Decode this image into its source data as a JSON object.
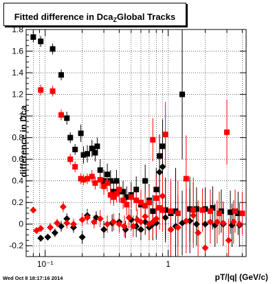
{
  "title": {
    "prefix": "Fitted difference in Dca",
    "subscript": "Z",
    "suffix": "Global Tracks"
  },
  "timestamp": "Wed Oct  8 18:17:16 2014",
  "chart_data": {
    "type": "scatter",
    "xlabel": "pT/|q| (GeV/c)",
    "ylabel": "difference in Dca",
    "xscale": "log",
    "xlim": [
      0.07,
      4.3
    ],
    "ylim": [
      -0.3,
      1.8
    ],
    "xticks": [
      {
        "value": 0.1,
        "label": "10⁻¹"
      },
      {
        "value": 1,
        "label": "1"
      }
    ],
    "yticks": [
      -0.2,
      0,
      0.2,
      0.4,
      0.6,
      0.8,
      1,
      1.2,
      1.4,
      1.6,
      1.8
    ],
    "ytick_labels": [
      "-0.2",
      "0",
      "0.2",
      "0.4",
      "0.6",
      "0.8",
      "1",
      "1.2",
      "1.4",
      "1.6",
      "1.8"
    ],
    "grid": true,
    "series": [
      {
        "marker": "square",
        "color": "#000000",
        "points": [
          {
            "x": 0.08,
            "y": 1.73,
            "err": 0.05
          },
          {
            "x": 0.092,
            "y": 1.69,
            "err": 0.05
          },
          {
            "x": 0.115,
            "y": 1.62,
            "err": 0.05
          },
          {
            "x": 0.135,
            "y": 1.38,
            "err": 0.05
          },
          {
            "x": 0.15,
            "y": 0.98,
            "err": 0.06
          },
          {
            "x": 0.16,
            "y": 0.8,
            "err": 0.05
          },
          {
            "x": 0.175,
            "y": 0.69,
            "err": 0.05
          },
          {
            "x": 0.195,
            "y": 0.84,
            "err": 0.08
          },
          {
            "x": 0.205,
            "y": 0.64,
            "err": 0.08
          },
          {
            "x": 0.22,
            "y": 0.65,
            "err": 0.08
          },
          {
            "x": 0.24,
            "y": 0.7,
            "err": 0.08
          },
          {
            "x": 0.255,
            "y": 0.66,
            "err": 0.08
          },
          {
            "x": 0.265,
            "y": 0.72,
            "err": 0.08
          },
          {
            "x": 0.28,
            "y": 0.5,
            "err": 0.1
          },
          {
            "x": 0.3,
            "y": 0.4,
            "err": 0.1
          },
          {
            "x": 0.32,
            "y": 0.46,
            "err": 0.1
          },
          {
            "x": 0.34,
            "y": 0.4,
            "err": 0.1
          },
          {
            "x": 0.36,
            "y": 0.3,
            "err": 0.1
          },
          {
            "x": 0.38,
            "y": 0.4,
            "err": 0.1
          },
          {
            "x": 0.4,
            "y": 0.3,
            "err": 0.1
          },
          {
            "x": 0.43,
            "y": 0.3,
            "err": 0.1
          },
          {
            "x": 0.46,
            "y": 0.25,
            "err": 0.1
          },
          {
            "x": 0.5,
            "y": 0.27,
            "err": 0.12
          },
          {
            "x": 0.55,
            "y": 0.32,
            "err": 0.12
          },
          {
            "x": 0.6,
            "y": 0.18,
            "err": 0.12
          },
          {
            "x": 0.65,
            "y": 0.4,
            "err": 0.15
          },
          {
            "x": 0.7,
            "y": 0.22,
            "err": 0.15
          },
          {
            "x": 0.75,
            "y": 0.12,
            "err": 0.15
          },
          {
            "x": 0.8,
            "y": 0.32,
            "err": 0.2
          },
          {
            "x": 0.85,
            "y": 0.63,
            "err": 0.2
          },
          {
            "x": 0.9,
            "y": 0.72,
            "err": 0.25
          },
          {
            "x": 0.95,
            "y": 0.13,
            "err": 0.3
          },
          {
            "x": 1.05,
            "y": 0.1,
            "err": 0.3
          },
          {
            "x": 1.15,
            "y": 0.12,
            "err": 0.4
          },
          {
            "x": 1.3,
            "y": 1.2,
            "err": 0.6
          },
          {
            "x": 1.5,
            "y": 0.14,
            "err": 0.3
          },
          {
            "x": 1.7,
            "y": 0.14,
            "err": 0.2
          },
          {
            "x": 2.0,
            "y": 0.14,
            "err": 0.2
          },
          {
            "x": 2.3,
            "y": 0.15,
            "err": 0.2
          },
          {
            "x": 2.7,
            "y": 0.12,
            "err": 0.2
          },
          {
            "x": 3.2,
            "y": 0.11,
            "err": 0.2
          },
          {
            "x": 3.7,
            "y": 0.1,
            "err": 0.2
          }
        ]
      },
      {
        "marker": "square",
        "color": "#ff0000",
        "points": [
          {
            "x": 0.092,
            "y": 1.24,
            "err": 0.05
          },
          {
            "x": 0.115,
            "y": 1.23,
            "err": 0.05
          },
          {
            "x": 0.135,
            "y": 1.01,
            "err": 0.05
          },
          {
            "x": 0.16,
            "y": 0.6,
            "err": 0.05
          },
          {
            "x": 0.175,
            "y": 0.53,
            "err": 0.05
          },
          {
            "x": 0.195,
            "y": 0.42,
            "err": 0.05
          },
          {
            "x": 0.205,
            "y": 0.41,
            "err": 0.05
          },
          {
            "x": 0.22,
            "y": 0.42,
            "err": 0.05
          },
          {
            "x": 0.24,
            "y": 0.44,
            "err": 0.06
          },
          {
            "x": 0.255,
            "y": 0.38,
            "err": 0.06
          },
          {
            "x": 0.28,
            "y": 0.41,
            "err": 0.08
          },
          {
            "x": 0.3,
            "y": 0.35,
            "err": 0.08
          },
          {
            "x": 0.32,
            "y": 0.38,
            "err": 0.08
          },
          {
            "x": 0.34,
            "y": 0.27,
            "err": 0.08
          },
          {
            "x": 0.36,
            "y": 0.25,
            "err": 0.08
          },
          {
            "x": 0.38,
            "y": 0.28,
            "err": 0.08
          },
          {
            "x": 0.4,
            "y": 0.32,
            "err": 0.08
          },
          {
            "x": 0.43,
            "y": 0.22,
            "err": 0.08
          },
          {
            "x": 0.46,
            "y": 0.18,
            "err": 0.1
          },
          {
            "x": 0.5,
            "y": 0.25,
            "err": 0.1
          },
          {
            "x": 0.55,
            "y": 0.22,
            "err": 0.1
          },
          {
            "x": 0.6,
            "y": 0.2,
            "err": 0.12
          },
          {
            "x": 0.65,
            "y": 0.17,
            "err": 0.12
          },
          {
            "x": 0.7,
            "y": 0.2,
            "err": 0.15
          },
          {
            "x": 0.75,
            "y": 0.78,
            "err": 0.2
          },
          {
            "x": 0.8,
            "y": 0.24,
            "err": 0.2
          },
          {
            "x": 0.85,
            "y": 0.15,
            "err": 0.2
          },
          {
            "x": 0.9,
            "y": 0.13,
            "err": 0.2
          },
          {
            "x": 0.95,
            "y": 0.83,
            "err": 0.3
          },
          {
            "x": 1.05,
            "y": 0.12,
            "err": 0.3
          },
          {
            "x": 1.2,
            "y": 0.1,
            "err": 0.3
          },
          {
            "x": 1.4,
            "y": 0.42,
            "err": 0.4
          },
          {
            "x": 1.6,
            "y": 0.13,
            "err": 0.3
          },
          {
            "x": 1.9,
            "y": 0.13,
            "err": 0.2
          },
          {
            "x": 2.2,
            "y": 0.12,
            "err": 0.2
          },
          {
            "x": 2.6,
            "y": 0.1,
            "err": 0.2
          },
          {
            "x": 3.0,
            "y": 0.85,
            "err": 0.3
          },
          {
            "x": 3.5,
            "y": 0.12,
            "err": 0.2
          },
          {
            "x": 4.0,
            "y": 0.1,
            "err": 0.2
          }
        ]
      },
      {
        "marker": "diamond",
        "color": "#000000",
        "points": [
          {
            "x": 0.092,
            "y": -0.13,
            "err": 0.03
          },
          {
            "x": 0.105,
            "y": -0.12,
            "err": 0.03
          },
          {
            "x": 0.12,
            "y": -0.08,
            "err": 0.04
          },
          {
            "x": 0.135,
            "y": -0.02,
            "err": 0.05
          },
          {
            "x": 0.15,
            "y": 0.05,
            "err": 0.05
          },
          {
            "x": 0.17,
            "y": -0.03,
            "err": 0.05
          },
          {
            "x": 0.2,
            "y": -0.12,
            "err": 0.06
          },
          {
            "x": 0.22,
            "y": 0.08,
            "err": 0.06
          },
          {
            "x": 0.26,
            "y": 0.06,
            "err": 0.06
          },
          {
            "x": 0.3,
            "y": -0.05,
            "err": 0.08
          },
          {
            "x": 0.35,
            "y": 0.01,
            "err": 0.08
          },
          {
            "x": 0.4,
            "y": 0.02,
            "err": 0.08
          },
          {
            "x": 0.45,
            "y": -0.05,
            "err": 0.08
          },
          {
            "x": 0.5,
            "y": 0.04,
            "err": 0.1
          },
          {
            "x": 0.55,
            "y": -0.02,
            "err": 0.1
          },
          {
            "x": 0.6,
            "y": -0.05,
            "err": 0.1
          },
          {
            "x": 0.65,
            "y": 0.02,
            "err": 0.12
          },
          {
            "x": 0.7,
            "y": -0.03,
            "err": 0.12
          },
          {
            "x": 0.75,
            "y": 0.0,
            "err": 0.15
          },
          {
            "x": 0.8,
            "y": 0.01,
            "err": 0.15
          },
          {
            "x": 0.85,
            "y": 0.48,
            "err": 0.2
          },
          {
            "x": 0.9,
            "y": 0.53,
            "err": 0.2
          },
          {
            "x": 0.95,
            "y": 0.06,
            "err": 0.2
          },
          {
            "x": 1.05,
            "y": -0.05,
            "err": 0.25
          },
          {
            "x": 1.15,
            "y": -0.02,
            "err": 0.3
          },
          {
            "x": 1.3,
            "y": 0.01,
            "err": 0.3
          },
          {
            "x": 1.5,
            "y": 0.03,
            "err": 0.3
          },
          {
            "x": 1.7,
            "y": 0.0,
            "err": 0.2
          },
          {
            "x": 2.0,
            "y": 0.0,
            "err": 0.2
          },
          {
            "x": 2.4,
            "y": -0.01,
            "err": 0.2
          },
          {
            "x": 2.8,
            "y": 0.0,
            "err": 0.2
          },
          {
            "x": 3.3,
            "y": -0.01,
            "err": 0.2
          },
          {
            "x": 3.8,
            "y": -0.01,
            "err": 0.2
          }
        ]
      },
      {
        "marker": "diamond",
        "color": "#ff0000",
        "points": [
          {
            "x": 0.08,
            "y": 0.13,
            "err": 0.03
          },
          {
            "x": 0.085,
            "y": -0.06,
            "err": 0.03
          },
          {
            "x": 0.092,
            "y": -0.04,
            "err": 0.03
          },
          {
            "x": 0.11,
            "y": -0.03,
            "err": 0.04
          },
          {
            "x": 0.125,
            "y": 0.01,
            "err": 0.04
          },
          {
            "x": 0.14,
            "y": 0.16,
            "err": 0.05
          },
          {
            "x": 0.15,
            "y": 0.01,
            "err": 0.05
          },
          {
            "x": 0.17,
            "y": 0.0,
            "err": 0.05
          },
          {
            "x": 0.2,
            "y": 0.04,
            "err": 0.06
          },
          {
            "x": 0.22,
            "y": 0.06,
            "err": 0.06
          },
          {
            "x": 0.25,
            "y": 0.02,
            "err": 0.06
          },
          {
            "x": 0.28,
            "y": 0.05,
            "err": 0.08
          },
          {
            "x": 0.32,
            "y": 0.0,
            "err": 0.08
          },
          {
            "x": 0.36,
            "y": 0.02,
            "err": 0.08
          },
          {
            "x": 0.4,
            "y": 0.0,
            "err": 0.08
          },
          {
            "x": 0.44,
            "y": -0.02,
            "err": 0.1
          },
          {
            "x": 0.48,
            "y": 0.06,
            "err": 0.1
          },
          {
            "x": 0.52,
            "y": -0.02,
            "err": 0.1
          },
          {
            "x": 0.56,
            "y": 0.04,
            "err": 0.1
          },
          {
            "x": 0.6,
            "y": 0.02,
            "err": 0.12
          },
          {
            "x": 0.65,
            "y": 0.07,
            "err": 0.12
          },
          {
            "x": 0.7,
            "y": 0.0,
            "err": 0.15
          },
          {
            "x": 0.75,
            "y": 0.02,
            "err": 0.15
          },
          {
            "x": 0.8,
            "y": 0.05,
            "err": 0.15
          },
          {
            "x": 0.9,
            "y": 0.26,
            "err": 0.2
          },
          {
            "x": 1.05,
            "y": -0.05,
            "err": 0.25
          },
          {
            "x": 1.2,
            "y": -0.03,
            "err": 0.3
          },
          {
            "x": 1.4,
            "y": 0.03,
            "err": 0.3
          },
          {
            "x": 1.6,
            "y": 0.08,
            "err": 0.3
          },
          {
            "x": 1.75,
            "y": -0.08,
            "err": 0.3
          },
          {
            "x": 2.0,
            "y": -0.22,
            "err": 0.2
          },
          {
            "x": 2.2,
            "y": 0.02,
            "err": 0.2
          },
          {
            "x": 2.5,
            "y": 0.02,
            "err": 0.2
          },
          {
            "x": 2.8,
            "y": 0.01,
            "err": 0.2
          },
          {
            "x": 3.1,
            "y": -0.15,
            "err": 0.2
          },
          {
            "x": 3.4,
            "y": 0.02,
            "err": 0.2
          },
          {
            "x": 3.8,
            "y": 0.0,
            "err": 0.2
          }
        ]
      }
    ]
  }
}
